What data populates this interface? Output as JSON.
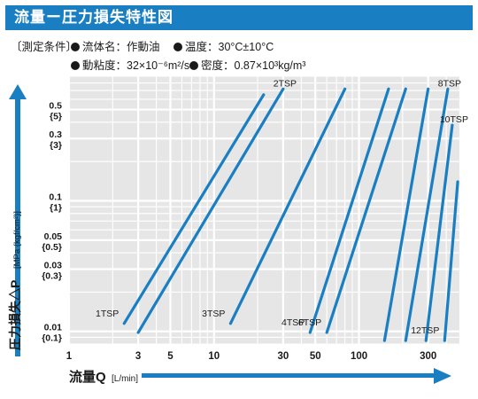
{
  "title": "流量ー圧力損失特性図",
  "conditions": {
    "label": "〔測定条件〕",
    "fluid": "流体名：作動油",
    "temperature": "温度：30°C±10°C",
    "viscosity": "動粘度：32×10⁻⁶m²/s",
    "density": "密度：0.87×10³kg/m³"
  },
  "colors": {
    "accent": "#1a7fc2",
    "line": "#1a7fc2",
    "plot_bg": "#e6e6e6",
    "grid": "#ffffff"
  },
  "chart_data": {
    "type": "line",
    "x_scale": "log",
    "y_scale": "log",
    "xlim": [
      1,
      500
    ],
    "ylim": [
      0.008,
      0.9
    ],
    "xlabel": "流量Q",
    "xlabel_unit": "[L/min]",
    "ylabel": "圧力損失△P",
    "ylabel_unit": "[MPa {kgf/cm²}]",
    "x_ticks": [
      "1",
      "3",
      "5",
      "10",
      "30",
      "50",
      "100",
      "300"
    ],
    "x_tick_values": [
      1,
      3,
      5,
      10,
      30,
      50,
      100,
      300
    ],
    "y_ticks": [
      {
        "value": 0.5,
        "mpa": "0.5",
        "kgf": "{5}"
      },
      {
        "value": 0.3,
        "mpa": "0.3",
        "kgf": "{3}"
      },
      {
        "value": 0.1,
        "mpa": "0.1",
        "kgf": "{1}"
      },
      {
        "value": 0.05,
        "mpa": "0.05",
        "kgf": "{0.5}"
      },
      {
        "value": 0.03,
        "mpa": "0.03",
        "kgf": "{0.3}"
      },
      {
        "value": 0.01,
        "mpa": "0.01",
        "kgf": "{0.1}"
      }
    ],
    "series": [
      {
        "name": "1TSP",
        "points": [
          [
            2.4,
            0.0115
          ],
          [
            22,
            0.65
          ]
        ],
        "label_anchor": "low"
      },
      {
        "name": "2TSP",
        "points": [
          [
            3,
            0.0098
          ],
          [
            30,
            0.72
          ]
        ],
        "label_anchor": "high"
      },
      {
        "name": "3TSP",
        "points": [
          [
            13,
            0.0115
          ],
          [
            80,
            0.72
          ]
        ],
        "label_anchor": "low"
      },
      {
        "name": "4TSP",
        "points": [
          [
            46,
            0.0098
          ],
          [
            160,
            0.72
          ]
        ],
        "label_anchor": "low"
      },
      {
        "name": "6TSP",
        "points": [
          [
            60,
            0.0098
          ],
          [
            210,
            0.72
          ]
        ],
        "label_anchor": "low"
      },
      {
        "name": "",
        "points": [
          [
            150,
            0.0085
          ],
          [
            300,
            0.72
          ]
        ],
        "label_anchor": "none"
      },
      {
        "name": "8TSP",
        "points": [
          [
            210,
            0.0085
          ],
          [
            410,
            0.72
          ]
        ],
        "label_anchor": "high"
      },
      {
        "name": "10TSP",
        "points": [
          [
            290,
            0.0085
          ],
          [
            440,
            0.38
          ]
        ],
        "label_anchor": "high"
      },
      {
        "name": "12TSP",
        "points": [
          [
            390,
            0.0085
          ],
          [
            480,
            0.14
          ]
        ],
        "label_anchor": "low"
      }
    ]
  }
}
